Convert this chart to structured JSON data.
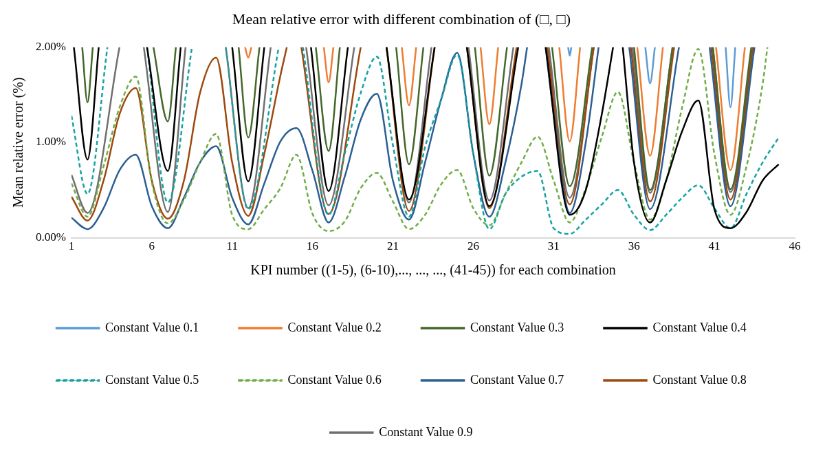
{
  "chart_data": {
    "type": "line",
    "title": "Mean relative error with different combination of (□, □)",
    "xlabel": "KPI number ((1-5), (6-10),..., ..., ..., (41-45)) for each combination",
    "ylabel": "Mean relative error (%)",
    "xlim": [
      1,
      46
    ],
    "xticks": [
      1,
      6,
      11,
      16,
      21,
      26,
      31,
      36,
      41,
      46
    ],
    "ylim": [
      0,
      2
    ],
    "yticks": [
      {
        "value": 0,
        "label": "0.00%"
      },
      {
        "value": 1,
        "label": "1.00%"
      },
      {
        "value": 2,
        "label": "2.00%"
      }
    ],
    "grid": false,
    "legend": "bottom",
    "marker": "none",
    "line_style": "solid",
    "series": [
      {
        "name": "Constant Value 0.1",
        "color": "#5b9bd5",
        "x": [
          31.9,
          32,
          32.1,
          34.5,
          36.7,
          37,
          37.3,
          39.5,
          41.7,
          42,
          42.3
        ],
        "values": [
          2,
          1.91,
          2,
          null,
          2,
          1.62,
          2,
          null,
          2,
          1.37,
          2
        ]
      },
      {
        "name": "Constant Value 0.2",
        "color": "#ed7d31",
        "x": [
          11.8,
          12,
          12.2,
          14.5,
          16.7,
          17,
          17.3,
          19.5,
          21.55,
          22,
          22.45,
          24.5,
          26.45,
          27,
          27.55,
          29.5,
          31.35,
          32,
          32.65,
          34.5,
          36.2,
          37,
          37.8,
          39.5,
          41.1,
          42,
          42.9
        ],
        "values": [
          2,
          1.89,
          2,
          null,
          2,
          1.63,
          2,
          null,
          2,
          1.39,
          2,
          null,
          2,
          1.19,
          2,
          null,
          2,
          1.01,
          2,
          null,
          2,
          0.86,
          2,
          null,
          2,
          0.71,
          2
        ]
      },
      {
        "name": "Constant Value 0.3",
        "color": "#43682b",
        "x": [
          1.67,
          2,
          2.33,
          4.5,
          6.1,
          7,
          7.5,
          9.5,
          11.4,
          12,
          12.7,
          14.5,
          16.2,
          17,
          17.7,
          19.5,
          21.2,
          22,
          22.9,
          24.5,
          26.1,
          27,
          28.1,
          29.5,
          30.9,
          32,
          33.4,
          34.5,
          36,
          37,
          38.4,
          39.5,
          40.9,
          42,
          43.3
        ],
        "values": [
          2,
          1.42,
          2,
          null,
          2,
          1.22,
          2,
          null,
          2,
          1.05,
          2,
          null,
          2,
          0.91,
          2,
          null,
          2,
          0.77,
          2,
          null,
          2,
          0.65,
          2,
          null,
          2,
          0.54,
          2,
          null,
          2,
          0.5,
          2,
          null,
          2,
          0.51,
          2
        ]
      },
      {
        "name": "Constant Value 0.4",
        "color": "#000000",
        "x": [
          1.15,
          2,
          2.7,
          4.5,
          5.7,
          7,
          7.8,
          9.5,
          11,
          12,
          13,
          14.5,
          15.9,
          17,
          18.2,
          19.5,
          20.6,
          22,
          23.6,
          24.5,
          25.6,
          27,
          28.8,
          29.5,
          30.5,
          32,
          33,
          34,
          34.7,
          35,
          35.3,
          36,
          37,
          38,
          39,
          40,
          41,
          42,
          43,
          44,
          45
        ],
        "values": [
          2,
          0.82,
          2,
          null,
          2,
          0.7,
          2,
          null,
          2,
          0.59,
          2,
          null,
          2,
          0.49,
          2,
          null,
          2,
          0.4,
          2,
          null,
          2,
          0.33,
          2,
          null,
          2,
          0.24,
          0.5,
          1.3,
          2,
          null,
          2,
          0.79,
          0.16,
          0.6,
          1.12,
          1.44,
          0.3,
          0.1,
          0.27,
          0.6,
          0.77
        ]
      },
      {
        "name": "Constant Value 0.5",
        "color": "#17a2a2",
        "line_style": "dashed",
        "x": [
          1,
          2,
          3.24,
          4.5,
          5.7,
          7,
          8.5,
          9.5,
          10.6,
          12,
          13.9,
          14.6,
          15.4,
          17,
          18,
          19,
          20,
          21,
          22,
          23,
          24,
          25,
          26,
          27,
          28,
          29,
          30,
          31,
          32,
          33,
          34,
          35,
          36,
          37,
          38,
          39,
          40,
          41,
          42,
          43,
          44,
          45
        ],
        "values": [
          1.28,
          0.46,
          2,
          null,
          2,
          0.37,
          2,
          null,
          2,
          0.3,
          2,
          null,
          2,
          0.24,
          0.88,
          1.52,
          1.9,
          0.97,
          0.22,
          0.95,
          1.45,
          1.92,
          0.88,
          0.09,
          0.46,
          0.64,
          0.7,
          0.1,
          0.04,
          0.19,
          0.35,
          0.5,
          0.24,
          0.08,
          0.24,
          0.42,
          0.55,
          0.31,
          0.1,
          0.46,
          0.79,
          1.05
        ]
      },
      {
        "name": "Constant Value 0.6",
        "color": "#70ad47",
        "line_style": "dashed",
        "x": [
          1,
          2,
          3,
          4,
          5,
          6,
          7,
          8,
          9,
          10,
          11,
          12,
          13,
          14,
          15,
          16,
          17,
          18,
          19,
          20,
          21,
          22,
          23,
          24,
          25,
          26,
          27,
          28,
          29,
          30,
          31,
          32,
          33,
          34,
          35,
          36,
          37,
          38,
          39,
          40,
          41,
          42,
          43,
          44,
          44.3
        ],
        "values": [
          0.57,
          0.22,
          0.75,
          1.37,
          1.69,
          0.58,
          0.15,
          0.4,
          0.79,
          1.09,
          0.24,
          0.09,
          0.3,
          0.52,
          0.87,
          0.25,
          0.07,
          0.17,
          0.52,
          0.68,
          0.38,
          0.09,
          0.24,
          0.56,
          0.71,
          0.31,
          0.13,
          0.46,
          0.79,
          1.06,
          0.6,
          0.16,
          0.52,
          1.06,
          1.53,
          0.79,
          0.19,
          0.6,
          1.37,
          1.98,
          0.88,
          0.24,
          0.75,
          1.61,
          2
        ]
      },
      {
        "name": "Constant Value 0.7",
        "color": "#2b5f93",
        "x": [
          1,
          2,
          3,
          4,
          5,
          6,
          7,
          8,
          9,
          10,
          11,
          12,
          13,
          14,
          15,
          16,
          17,
          18,
          19,
          20,
          21,
          22,
          23,
          24,
          25,
          26,
          27,
          28,
          29,
          29.35,
          30,
          30.5,
          31,
          32,
          33,
          33.8,
          34.7,
          35.7,
          37,
          38.8,
          39.7,
          40.7,
          42,
          43.5
        ],
        "values": [
          0.21,
          0.09,
          0.31,
          0.71,
          0.87,
          0.33,
          0.1,
          0.42,
          0.79,
          0.96,
          0.42,
          0.14,
          0.57,
          1.01,
          1.15,
          0.7,
          0.16,
          0.64,
          1.24,
          1.51,
          0.6,
          0.19,
          0.79,
          1.45,
          1.94,
          0.88,
          0.22,
          0.79,
          1.61,
          2,
          null,
          2,
          1.3,
          0.26,
          1,
          2,
          null,
          2,
          0.3,
          2,
          null,
          2,
          0.33,
          2
        ]
      },
      {
        "name": "Constant Value 0.8",
        "color": "#9e480e",
        "x": [
          1,
          2,
          3,
          4,
          5,
          6,
          7,
          8,
          9,
          10,
          11,
          12,
          13,
          14,
          14.4,
          14.8,
          15.3,
          17,
          19,
          19.8,
          20.6,
          22,
          23.6,
          24.6,
          25.6,
          27,
          28.7,
          29.6,
          30.6,
          32,
          33.5,
          34.6,
          35.8,
          37,
          38.5,
          39.6,
          40.8,
          42,
          43.4
        ],
        "values": [
          0.43,
          0.18,
          0.6,
          1.3,
          1.57,
          0.6,
          0.2,
          0.6,
          1.52,
          1.89,
          0.79,
          0.23,
          0.88,
          1.7,
          2,
          null,
          2,
          0.25,
          2,
          null,
          2,
          0.28,
          2,
          null,
          2,
          0.31,
          2,
          null,
          2,
          0.35,
          2,
          null,
          2,
          0.38,
          2,
          null,
          2,
          0.4,
          2
        ]
      },
      {
        "name": "Constant Value 0.9",
        "color": "#6f6f6f",
        "x": [
          1,
          2,
          3.99,
          4.7,
          5.5,
          7,
          8.1,
          9.4,
          10.6,
          12,
          13.4,
          14.5,
          15.6,
          17,
          18.6,
          19.6,
          20.6,
          22,
          23.4,
          24.5,
          25.7,
          27,
          28.5,
          29.6,
          30.7,
          32,
          33.5,
          34.7,
          35.9,
          37,
          38.4,
          39.6,
          40.9,
          42,
          43.4
        ],
        "values": [
          0.66,
          0.26,
          2,
          null,
          2,
          0.27,
          2,
          null,
          2,
          0.31,
          2,
          null,
          2,
          0.34,
          2,
          null,
          2,
          0.37,
          2,
          null,
          2,
          0.39,
          2,
          null,
          2,
          0.42,
          2,
          null,
          2,
          0.47,
          2,
          null,
          2,
          0.48,
          2
        ]
      }
    ]
  }
}
